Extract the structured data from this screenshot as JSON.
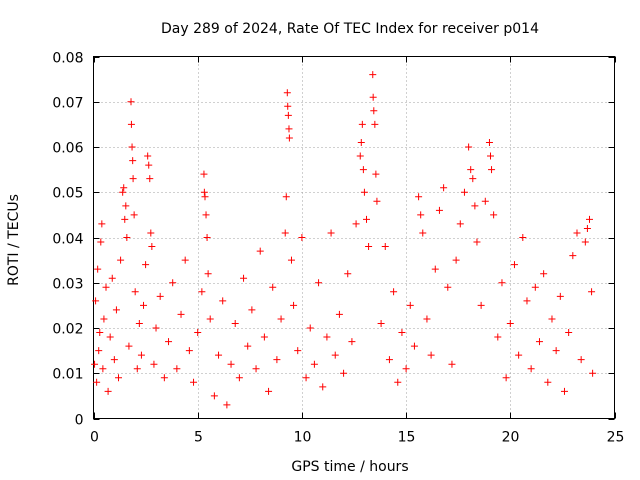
{
  "chart_data": {
    "type": "scatter",
    "title": "Day 289 of 2024, Rate Of TEC Index for receiver p014",
    "xlabel": "GPS time / hours",
    "ylabel": "ROTI / TECUs",
    "xlim": [
      0,
      25
    ],
    "ylim": [
      0,
      0.08
    ],
    "x_ticks": [
      0,
      5,
      10,
      15,
      20,
      25
    ],
    "y_ticks": [
      0,
      0.01,
      0.02,
      0.03,
      0.04,
      0.05,
      0.06,
      0.07,
      0.08
    ],
    "x_tick_labels": [
      "0",
      "5",
      "10",
      "15",
      "20",
      "25"
    ],
    "y_tick_labels": [
      "0",
      "0.01",
      "0.02",
      "0.03",
      "0.04",
      "0.05",
      "0.06",
      "0.07",
      "0.08"
    ],
    "grid": true,
    "marker": "+",
    "color": "#ff0000",
    "series": [
      {
        "name": "p014",
        "points": [
          [
            0.05,
            0.012
          ],
          [
            0.1,
            0.026
          ],
          [
            0.15,
            0.008
          ],
          [
            0.2,
            0.033
          ],
          [
            0.25,
            0.015
          ],
          [
            0.3,
            0.019
          ],
          [
            0.35,
            0.039
          ],
          [
            0.4,
            0.043
          ],
          [
            0.45,
            0.011
          ],
          [
            0.5,
            0.022
          ],
          [
            0.6,
            0.029
          ],
          [
            0.7,
            0.006
          ],
          [
            0.8,
            0.018
          ],
          [
            0.9,
            0.031
          ],
          [
            1.0,
            0.013
          ],
          [
            1.1,
            0.024
          ],
          [
            1.2,
            0.009
          ],
          [
            1.3,
            0.035
          ],
          [
            1.4,
            0.05
          ],
          [
            1.45,
            0.051
          ],
          [
            1.5,
            0.044
          ],
          [
            1.55,
            0.047
          ],
          [
            1.6,
            0.04
          ],
          [
            1.7,
            0.016
          ],
          [
            1.8,
            0.07
          ],
          [
            1.82,
            0.065
          ],
          [
            1.85,
            0.06
          ],
          [
            1.88,
            0.057
          ],
          [
            1.9,
            0.053
          ],
          [
            1.95,
            0.045
          ],
          [
            2.0,
            0.028
          ],
          [
            2.1,
            0.011
          ],
          [
            2.2,
            0.021
          ],
          [
            2.3,
            0.014
          ],
          [
            2.4,
            0.025
          ],
          [
            2.5,
            0.034
          ],
          [
            2.6,
            0.058
          ],
          [
            2.65,
            0.056
          ],
          [
            2.7,
            0.053
          ],
          [
            2.75,
            0.041
          ],
          [
            2.8,
            0.038
          ],
          [
            2.9,
            0.012
          ],
          [
            3.0,
            0.02
          ],
          [
            3.2,
            0.027
          ],
          [
            3.4,
            0.009
          ],
          [
            3.6,
            0.017
          ],
          [
            3.8,
            0.03
          ],
          [
            4.0,
            0.011
          ],
          [
            4.2,
            0.023
          ],
          [
            4.4,
            0.035
          ],
          [
            4.6,
            0.015
          ],
          [
            4.8,
            0.008
          ],
          [
            5.0,
            0.019
          ],
          [
            5.2,
            0.028
          ],
          [
            5.3,
            0.054
          ],
          [
            5.32,
            0.05
          ],
          [
            5.35,
            0.049
          ],
          [
            5.4,
            0.045
          ],
          [
            5.45,
            0.04
          ],
          [
            5.5,
            0.032
          ],
          [
            5.6,
            0.022
          ],
          [
            5.8,
            0.005
          ],
          [
            6.0,
            0.014
          ],
          [
            6.2,
            0.026
          ],
          [
            6.4,
            0.003
          ],
          [
            6.6,
            0.012
          ],
          [
            6.8,
            0.021
          ],
          [
            7.0,
            0.009
          ],
          [
            7.2,
            0.031
          ],
          [
            7.4,
            0.016
          ],
          [
            7.6,
            0.024
          ],
          [
            7.8,
            0.011
          ],
          [
            8.0,
            0.037
          ],
          [
            8.2,
            0.018
          ],
          [
            8.4,
            0.006
          ],
          [
            8.6,
            0.029
          ],
          [
            8.8,
            0.013
          ],
          [
            9.0,
            0.022
          ],
          [
            9.2,
            0.041
          ],
          [
            9.25,
            0.049
          ],
          [
            9.3,
            0.072
          ],
          [
            9.32,
            0.069
          ],
          [
            9.35,
            0.067
          ],
          [
            9.38,
            0.064
          ],
          [
            9.4,
            0.062
          ],
          [
            9.5,
            0.035
          ],
          [
            9.6,
            0.025
          ],
          [
            9.8,
            0.015
          ],
          [
            10.0,
            0.04
          ],
          [
            10.2,
            0.009
          ],
          [
            10.4,
            0.02
          ],
          [
            10.6,
            0.012
          ],
          [
            10.8,
            0.03
          ],
          [
            11.0,
            0.007
          ],
          [
            11.2,
            0.018
          ],
          [
            11.4,
            0.041
          ],
          [
            11.6,
            0.014
          ],
          [
            11.8,
            0.023
          ],
          [
            12.0,
            0.01
          ],
          [
            12.2,
            0.032
          ],
          [
            12.4,
            0.017
          ],
          [
            12.6,
            0.043
          ],
          [
            12.8,
            0.058
          ],
          [
            12.85,
            0.061
          ],
          [
            12.9,
            0.065
          ],
          [
            12.95,
            0.055
          ],
          [
            13.0,
            0.05
          ],
          [
            13.1,
            0.044
          ],
          [
            13.2,
            0.038
          ],
          [
            13.4,
            0.076
          ],
          [
            13.42,
            0.071
          ],
          [
            13.45,
            0.068
          ],
          [
            13.5,
            0.065
          ],
          [
            13.55,
            0.054
          ],
          [
            13.6,
            0.048
          ],
          [
            13.8,
            0.021
          ],
          [
            14.0,
            0.038
          ],
          [
            14.2,
            0.013
          ],
          [
            14.4,
            0.028
          ],
          [
            14.6,
            0.008
          ],
          [
            14.8,
            0.019
          ],
          [
            15.0,
            0.011
          ],
          [
            15.2,
            0.025
          ],
          [
            15.4,
            0.016
          ],
          [
            15.6,
            0.049
          ],
          [
            15.7,
            0.045
          ],
          [
            15.8,
            0.041
          ],
          [
            16.0,
            0.022
          ],
          [
            16.2,
            0.014
          ],
          [
            16.4,
            0.033
          ],
          [
            16.6,
            0.046
          ],
          [
            16.8,
            0.051
          ],
          [
            17.0,
            0.029
          ],
          [
            17.2,
            0.012
          ],
          [
            17.4,
            0.035
          ],
          [
            17.6,
            0.043
          ],
          [
            17.8,
            0.05
          ],
          [
            18.0,
            0.06
          ],
          [
            18.1,
            0.055
          ],
          [
            18.2,
            0.053
          ],
          [
            18.3,
            0.047
          ],
          [
            18.4,
            0.039
          ],
          [
            18.6,
            0.025
          ],
          [
            18.8,
            0.048
          ],
          [
            19.0,
            0.061
          ],
          [
            19.05,
            0.058
          ],
          [
            19.1,
            0.055
          ],
          [
            19.2,
            0.045
          ],
          [
            19.4,
            0.018
          ],
          [
            19.6,
            0.03
          ],
          [
            19.8,
            0.009
          ],
          [
            20.0,
            0.021
          ],
          [
            20.2,
            0.034
          ],
          [
            20.4,
            0.014
          ],
          [
            20.6,
            0.04
          ],
          [
            20.8,
            0.026
          ],
          [
            21.0,
            0.011
          ],
          [
            21.2,
            0.029
          ],
          [
            21.4,
            0.017
          ],
          [
            21.6,
            0.032
          ],
          [
            21.8,
            0.008
          ],
          [
            22.0,
            0.022
          ],
          [
            22.2,
            0.015
          ],
          [
            22.4,
            0.027
          ],
          [
            22.6,
            0.006
          ],
          [
            22.8,
            0.019
          ],
          [
            23.0,
            0.036
          ],
          [
            23.2,
            0.041
          ],
          [
            23.4,
            0.013
          ],
          [
            23.6,
            0.039
          ],
          [
            23.7,
            0.042
          ],
          [
            23.8,
            0.044
          ],
          [
            23.9,
            0.028
          ],
          [
            23.95,
            0.01
          ]
        ]
      }
    ]
  }
}
